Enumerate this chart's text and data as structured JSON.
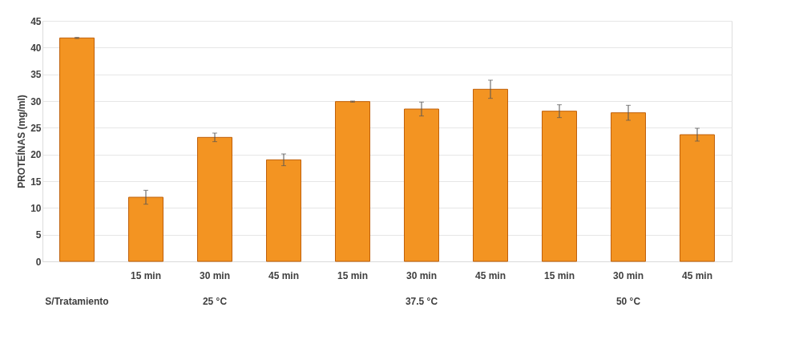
{
  "chart_data": {
    "type": "bar",
    "ylabel": "PROTEÍNAS (mg/ml)",
    "categories": [
      null,
      "15 min",
      "30 min",
      "45 min",
      "15 min",
      "30 min",
      "45 min",
      "15 min",
      "30 min",
      "45 min"
    ],
    "values": [
      41.8,
      12.0,
      23.2,
      19.0,
      29.9,
      28.5,
      32.2,
      28.1,
      27.8,
      23.7
    ],
    "errors": [
      0.1,
      1.3,
      0.8,
      1.1,
      0.1,
      1.3,
      1.7,
      1.2,
      1.4,
      1.2
    ],
    "color": "#f39422",
    "ylim": [
      0,
      45
    ],
    "yticks": [
      0,
      5,
      10,
      15,
      20,
      25,
      30,
      35,
      40,
      45
    ],
    "grid": "y",
    "annotations": [
      "S/Tratamiento",
      "25 °C",
      "37.5 °C",
      "50 °C"
    ]
  }
}
